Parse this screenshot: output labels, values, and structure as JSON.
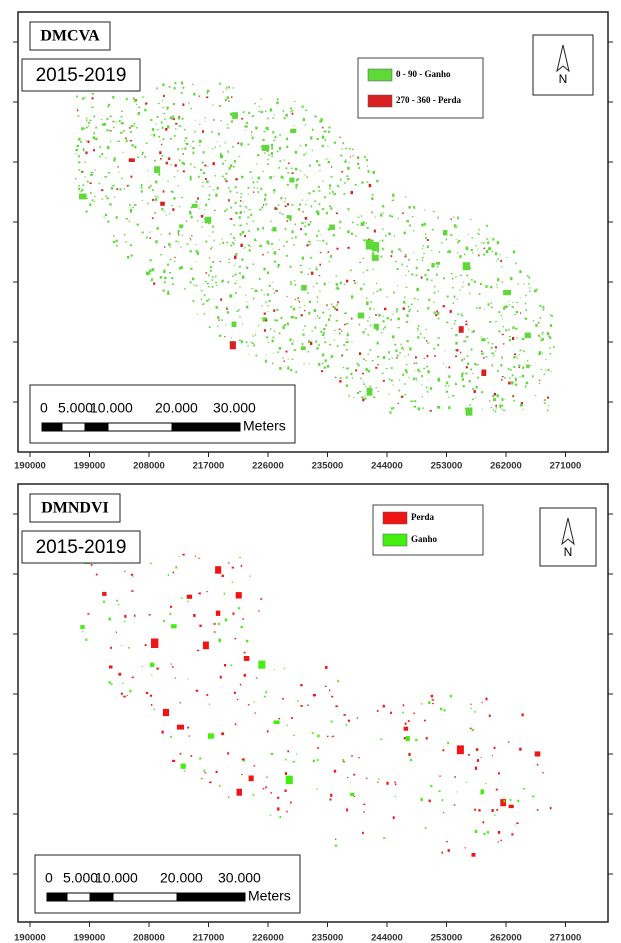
{
  "panels": [
    {
      "title": "DMCVA",
      "period": "2015-2019",
      "legend": [
        {
          "label": "0 - 90 -  Ganho",
          "color": "#5fd83a"
        },
        {
          "label": "270 - 360 - Perda",
          "color": "#d82020"
        }
      ],
      "north": "N",
      "scale": {
        "labels": [
          "0",
          "5.000",
          "10.000",
          "20.000",
          "30.000"
        ],
        "unit": "Meters"
      },
      "xticks": [
        190000,
        199000,
        208000,
        217000,
        226000,
        235000,
        244000,
        253000,
        262000,
        271000
      ]
    },
    {
      "title": "DMNDVI",
      "period": "2015-2019",
      "legend": [
        {
          "label": "Perda",
          "color": "#f01414"
        },
        {
          "label": "Ganho",
          "color": "#44ee11"
        }
      ],
      "north": "N",
      "scale": {
        "labels": [
          "0",
          "5.000",
          "10.000",
          "20.000",
          "30.000"
        ],
        "unit": "Meters"
      },
      "xticks": [
        190000,
        199000,
        208000,
        217000,
        226000,
        235000,
        244000,
        253000,
        262000,
        271000
      ]
    }
  ]
}
